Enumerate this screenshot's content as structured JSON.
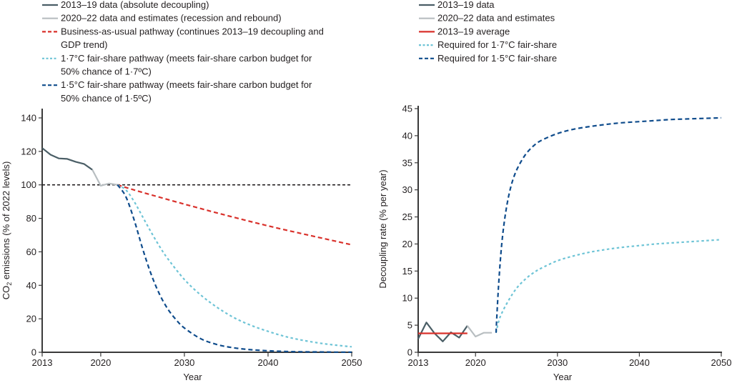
{
  "colors": {
    "data_2013_19": "#4a5e66",
    "data_2020_22": "#b8bec1",
    "business_as_usual": "#d9312b",
    "average_2013_19": "#d9312b",
    "fair_share_1_7": "#6ec4d6",
    "fair_share_1_5": "#0f4c8c",
    "reference_line": "#231f20",
    "axis": "#3a3a3a"
  },
  "chart_data": [
    {
      "type": "line",
      "title": "",
      "xlabel": "Year",
      "ylabel": "CO₂ emissions (% of 2022 levels)",
      "xlim": [
        2013,
        2050
      ],
      "ylim": [
        0,
        140
      ],
      "xticks": [
        2013,
        2020,
        2030,
        2040,
        2050
      ],
      "yticks": [
        0,
        20,
        40,
        60,
        80,
        100,
        120,
        140
      ],
      "grid": false,
      "legend_position": "top-left",
      "reference_lines": [
        {
          "y": 100,
          "style": "dashed",
          "color": "#231f20"
        }
      ],
      "series": [
        {
          "name": "2013–19 data (absolute decoupling)",
          "style": "solid",
          "color_key": "data_2013_19",
          "x": [
            2013,
            2014,
            2015,
            2016,
            2017,
            2018,
            2019
          ],
          "y": [
            122,
            118,
            115.8,
            115.5,
            113.8,
            112.5,
            109
          ]
        },
        {
          "name": "2020–22 data and estimates (recession and rebound)",
          "style": "solid",
          "color_key": "data_2020_22",
          "x": [
            2019,
            2020,
            2021,
            2022
          ],
          "y": [
            109,
            99.5,
            100.8,
            100
          ]
        },
        {
          "name": "Business-as-usual pathway (continues 2013–19 decoupling and GDP trend)",
          "style": "dashed",
          "color_key": "business_as_usual",
          "x": [
            2022,
            2025,
            2030,
            2035,
            2040,
            2045,
            2050
          ],
          "y": [
            100,
            95.5,
            88.5,
            81.8,
            75.5,
            69.8,
            64.2
          ]
        },
        {
          "name": "1·7°C fair-share pathway (meets fair-share carbon budget for 50% chance of 1·7°C)",
          "style": "dotted",
          "color_key": "fair_share_1_7",
          "x": [
            2022,
            2023,
            2024,
            2025,
            2026,
            2027,
            2028,
            2030,
            2032,
            2034,
            2036,
            2038,
            2040,
            2042,
            2044,
            2046,
            2048,
            2050
          ],
          "y": [
            100,
            97,
            90,
            81,
            72,
            63.5,
            56,
            43.5,
            34,
            26.5,
            20.5,
            16,
            12.5,
            9.5,
            7.3,
            5.6,
            4.3,
            3.3
          ]
        },
        {
          "name": "1·5°C fair-share pathway (meets fair-share carbon budget for 50% chance of 1·5°C)",
          "style": "dashed",
          "color_key": "fair_share_1_5",
          "x": [
            2022,
            2023,
            2024,
            2025,
            2026,
            2027,
            2028,
            2029,
            2030,
            2032,
            2034,
            2036,
            2038,
            2040,
            2042,
            2044,
            2046,
            2048,
            2050
          ],
          "y": [
            100,
            93,
            79,
            62,
            47,
            35,
            26,
            19.5,
            14.5,
            8,
            4.5,
            2.6,
            1.5,
            0.9,
            0.5,
            0.3,
            0.2,
            0.1,
            0.05
          ]
        }
      ]
    },
    {
      "type": "line",
      "title": "",
      "xlabel": "Year",
      "ylabel": "Decoupling rate (% per year)",
      "xlim": [
        2013,
        2050
      ],
      "ylim": [
        0,
        45
      ],
      "xticks": [
        2013,
        2020,
        2030,
        2040,
        2050
      ],
      "yticks": [
        0,
        5,
        10,
        15,
        20,
        25,
        30,
        35,
        40,
        45
      ],
      "grid": false,
      "legend_position": "top-left",
      "series": [
        {
          "name": "2013–19 data",
          "style": "solid",
          "color_key": "data_2013_19",
          "x": [
            2013,
            2014,
            2015,
            2016,
            2017,
            2018,
            2019
          ],
          "y": [
            2.5,
            5.5,
            3.5,
            2.0,
            3.7,
            2.7,
            4.9
          ]
        },
        {
          "name": "2020–22 data and estimates",
          "style": "solid",
          "color_key": "data_2020_22",
          "x": [
            2019,
            2020,
            2021,
            2022
          ],
          "y": [
            4.9,
            2.9,
            3.6,
            3.6
          ]
        },
        {
          "name": "2013–19 average",
          "style": "solid",
          "color_key": "average_2013_19",
          "x": [
            2013,
            2019
          ],
          "y": [
            3.5,
            3.5
          ]
        },
        {
          "name": "Required for 1·7°C fair-share",
          "style": "dotted",
          "color_key": "fair_share_1_7",
          "x": [
            2022.5,
            2023,
            2024,
            2025,
            2026,
            2027,
            2028,
            2030,
            2032,
            2034,
            2036,
            2038,
            2040,
            2042,
            2044,
            2046,
            2048,
            2050
          ],
          "y": [
            3.6,
            6.5,
            9.5,
            11.8,
            13.4,
            14.6,
            15.5,
            16.9,
            17.8,
            18.5,
            19.0,
            19.4,
            19.7,
            20.0,
            20.2,
            20.4,
            20.6,
            20.8
          ]
        },
        {
          "name": "Required for 1·5°C fair-share",
          "style": "dashed",
          "color_key": "fair_share_1_5",
          "x": [
            2022.5,
            2022.8,
            2023.2,
            2023.7,
            2024.3,
            2025,
            2026,
            2027,
            2028,
            2030,
            2032,
            2034,
            2036,
            2038,
            2040,
            2042,
            2044,
            2046,
            2048,
            2050
          ],
          "y": [
            3.6,
            12,
            20,
            26,
            30.5,
            33.6,
            36.3,
            38.0,
            39.1,
            40.4,
            41.2,
            41.7,
            42.1,
            42.4,
            42.6,
            42.8,
            43.0,
            43.1,
            43.2,
            43.3
          ]
        }
      ]
    }
  ],
  "left_legend": [
    {
      "lines": [
        "2013–19 data (absolute decoupling)"
      ],
      "style": "solid",
      "color_key": "data_2013_19"
    },
    {
      "lines": [
        "2020–22 data and estimates (recession and rebound)"
      ],
      "style": "solid",
      "color_key": "data_2020_22"
    },
    {
      "lines": [
        "Business-as-usual pathway (continues 2013–19 decoupling and",
        "GDP trend)"
      ],
      "style": "dashed",
      "color_key": "business_as_usual"
    },
    {
      "lines": [
        "1·7°C fair-share pathway (meets fair-share carbon budget for",
        "50% chance of 1·7ºC)"
      ],
      "style": "dotted",
      "color_key": "fair_share_1_7"
    },
    {
      "lines": [
        "1·5°C fair-share pathway (meets fair-share carbon budget for",
        "50% chance of 1·5ºC)"
      ],
      "style": "dashed",
      "color_key": "fair_share_1_5"
    }
  ],
  "right_legend": [
    {
      "lines": [
        "2013–19 data"
      ],
      "style": "solid",
      "color_key": "data_2013_19"
    },
    {
      "lines": [
        "2020–22 data and estimates"
      ],
      "style": "solid",
      "color_key": "data_2020_22"
    },
    {
      "lines": [
        "2013–19 average"
      ],
      "style": "solid",
      "color_key": "average_2013_19"
    },
    {
      "lines": [
        "Required for 1·7°C fair-share"
      ],
      "style": "dotted",
      "color_key": "fair_share_1_7"
    },
    {
      "lines": [
        "Required for 1·5°C fair-share"
      ],
      "style": "dashed",
      "color_key": "fair_share_1_5"
    }
  ]
}
